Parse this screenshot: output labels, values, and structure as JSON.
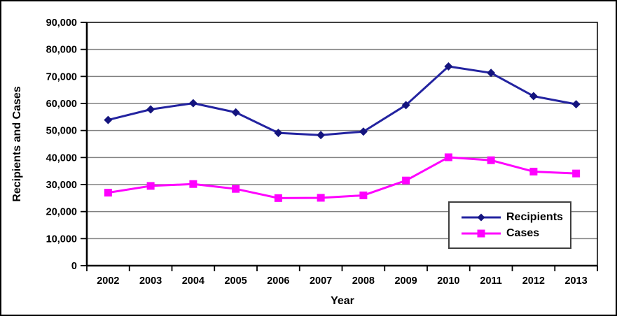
{
  "chart_data": {
    "type": "line",
    "title": "",
    "xlabel": "Year",
    "ylabel": "Recipients and Cases",
    "categories": [
      "2002",
      "2003",
      "2004",
      "2005",
      "2006",
      "2007",
      "2008",
      "2009",
      "2010",
      "2011",
      "2012",
      "2013"
    ],
    "series": [
      {
        "name": "Recipients",
        "marker": "diamond",
        "line_color": "#2323a0",
        "marker_color": "#14147e",
        "values": [
          53900,
          57800,
          60100,
          56700,
          49100,
          48300,
          49600,
          59400,
          73700,
          71300,
          62700,
          59700
        ]
      },
      {
        "name": "Cases",
        "marker": "square",
        "line_color": "#ff00ff",
        "marker_color": "#ff00ff",
        "values": [
          27000,
          29500,
          30200,
          28400,
          25000,
          25100,
          26000,
          31500,
          40100,
          39000,
          34800,
          34100
        ]
      }
    ],
    "ylim": [
      0,
      90000
    ],
    "ytick_step": 10000,
    "ytick_labels": [
      "0",
      "10,000",
      "20,000",
      "30,000",
      "40,000",
      "50,000",
      "60,000",
      "70,000",
      "80,000",
      "90,000"
    ],
    "grid": "horizontal",
    "gridline_color": "#808080",
    "axis_color": "#000000",
    "legend_position": "inside-right"
  }
}
